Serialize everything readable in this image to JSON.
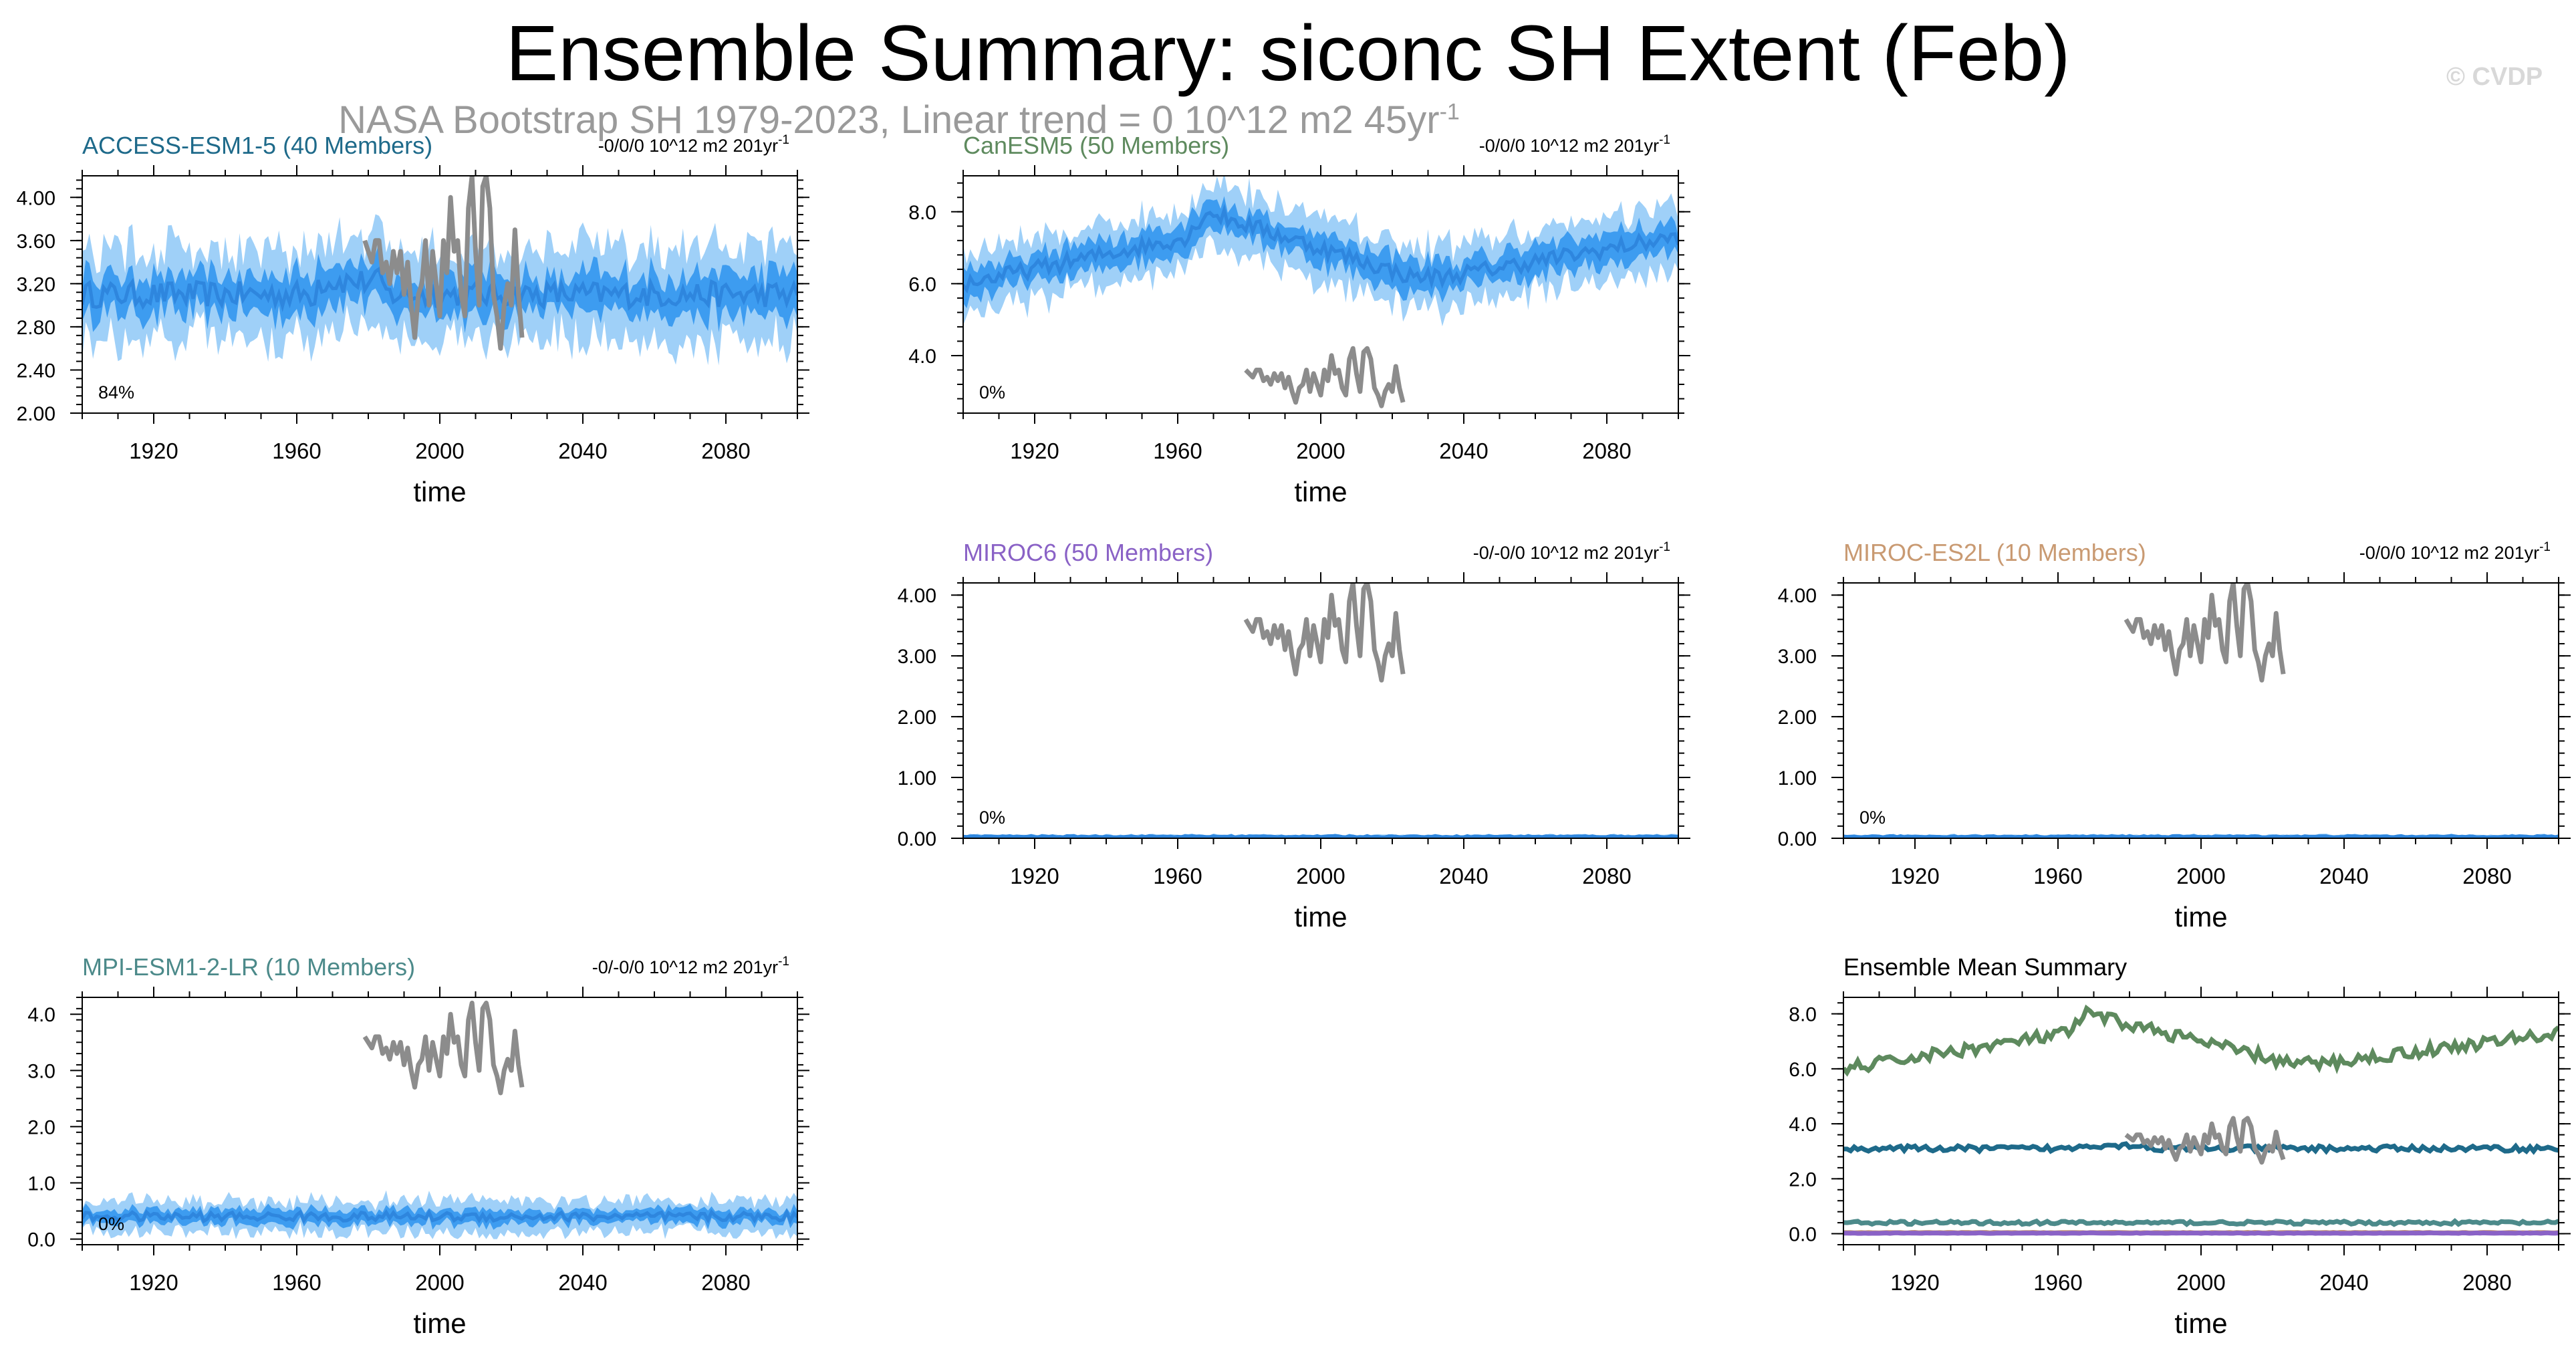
{
  "title": "Ensemble Summary: siconc SH Extent (Feb)",
  "subtitle": {
    "text": "NASA Bootstrap SH 1979-2023, Linear trend = 0 10^12 m2 45yr",
    "superscript": "-1"
  },
  "copyright": "© CVDP",
  "colors": {
    "ensemble_mean": "#2e86de",
    "inner_spread": "#3d9cf0",
    "outer_spread": "#9fd0f8",
    "observations": "#8c8c8c"
  },
  "chart_data": [
    {
      "type": "line",
      "title": "ACCESS-ESM1-5 (40 Members)",
      "title_color": "#1e6a8a",
      "trend_label": "-0/0/0 10^12 m2 201yr",
      "trend_sup": "-1",
      "percent_label": "84%",
      "xlabel": "time",
      "xlim": [
        1900,
        2100
      ],
      "xticks": [
        1920,
        1960,
        2000,
        2040,
        2080
      ],
      "ylim": [
        2.0,
        4.2
      ],
      "yticks": [
        "2.00",
        "2.40",
        "2.80",
        "3.20",
        "3.60",
        "4.00"
      ],
      "grid": false,
      "ensemble": {
        "base": 3.1,
        "amp": 0.12,
        "inner": 0.18,
        "outer": 0.42,
        "min": 2.0
      }
    },
    {
      "type": "line",
      "title": "CanESM5 (50 Members)",
      "title_color": "#5e8a5e",
      "trend_label": "-0/0/0 10^12 m2 201yr",
      "trend_sup": "-1",
      "percent_label": "0%",
      "xlabel": "time",
      "xlim": [
        1900,
        2100
      ],
      "xticks": [
        1920,
        1960,
        2000,
        2040,
        2080
      ],
      "ylim": [
        2.4,
        9.0
      ],
      "yticks": [
        "4.0",
        "6.0",
        "8.0"
      ],
      "grid": false,
      "ensemble": {
        "profile": "canesm",
        "inner": 0.4,
        "outer": 0.85,
        "min": 2.4
      }
    },
    {
      "type": "line",
      "title": "MIROC6 (50 Members)",
      "title_color": "#8a62c6",
      "trend_label": "-0/-0/0 10^12 m2 201yr",
      "trend_sup": "-1",
      "percent_label": "0%",
      "xlabel": "time",
      "xlim": [
        1900,
        2100
      ],
      "xticks": [
        1920,
        1960,
        2000,
        2040,
        2080
      ],
      "ylim": [
        0.0,
        4.2
      ],
      "yticks": [
        "0.00",
        "1.00",
        "2.00",
        "3.00",
        "4.00"
      ],
      "grid": false,
      "ensemble": {
        "base": 0.03,
        "amp": 0.01,
        "inner": 0.015,
        "outer": 0.03,
        "min": 0.0
      }
    },
    {
      "type": "line",
      "title": "MIROC-ES2L (10 Members)",
      "title_color": "#c99a72",
      "trend_label": "-0/0/0 10^12 m2 201yr",
      "trend_sup": "-1",
      "percent_label": "0%",
      "xlabel": "time",
      "xlim": [
        1900,
        2100
      ],
      "xticks": [
        1920,
        1960,
        2000,
        2040,
        2080
      ],
      "ylim": [
        0.0,
        4.2
      ],
      "yticks": [
        "0.00",
        "1.00",
        "2.00",
        "3.00",
        "4.00"
      ],
      "grid": false,
      "ensemble": {
        "base": 0.03,
        "amp": 0.01,
        "inner": 0.015,
        "outer": 0.03,
        "min": 0.0
      }
    },
    {
      "type": "line",
      "title": "MPI-ESM1-2-LR (10 Members)",
      "title_color": "#4c8a8a",
      "trend_label": "-0/-0/0 10^12 m2 201yr",
      "trend_sup": "-1",
      "percent_label": "0%",
      "xlabel": "time",
      "xlim": [
        1900,
        2100
      ],
      "xticks": [
        1920,
        1960,
        2000,
        2040,
        2080
      ],
      "ylim": [
        -0.1,
        4.3
      ],
      "yticks": [
        "0.0",
        "1.0",
        "2.0",
        "3.0",
        "4.0"
      ],
      "grid": false,
      "ensemble": {
        "base": 0.4,
        "amp": 0.08,
        "inner": 0.12,
        "outer": 0.28,
        "min": 0.0
      }
    },
    {
      "type": "line",
      "title": "Ensemble Mean Summary",
      "title_color": "#000000",
      "trend_label": "",
      "trend_sup": "",
      "percent_label": "",
      "xlabel": "time",
      "xlim": [
        1900,
        2100
      ],
      "xticks": [
        1920,
        1960,
        2000,
        2040,
        2080
      ],
      "ylim": [
        -0.4,
        8.6
      ],
      "yticks": [
        "0.0",
        "2.0",
        "4.0",
        "6.0",
        "8.0"
      ],
      "grid": false,
      "summary_lines": [
        {
          "color": "#5e8a5e",
          "profile": "canesm"
        },
        {
          "color": "#1e6a8a",
          "base": 3.1,
          "amp": 0.1
        },
        {
          "color": "#4c8a8a",
          "base": 0.4,
          "amp": 0.06
        },
        {
          "color": "#c99a72",
          "base": 0.04,
          "amp": 0.01
        },
        {
          "color": "#8a62c6",
          "base": 0.02,
          "amp": 0.01
        }
      ]
    }
  ],
  "observations": {
    "name": "NASA Bootstrap SH",
    "years": [
      1979,
      1980,
      1981,
      1982,
      1983,
      1984,
      1985,
      1986,
      1987,
      1988,
      1989,
      1990,
      1991,
      1992,
      1993,
      1994,
      1995,
      1996,
      1997,
      1998,
      1999,
      2000,
      2001,
      2002,
      2003,
      2004,
      2005,
      2006,
      2007,
      2008,
      2009,
      2010,
      2011,
      2012,
      2013,
      2014,
      2015,
      2016,
      2017,
      2018,
      2019,
      2020,
      2021,
      2022,
      2023
    ],
    "values": [
      3.6,
      3.5,
      3.4,
      3.6,
      3.6,
      3.3,
      3.4,
      3.2,
      3.5,
      3.3,
      3.5,
      3.1,
      3.4,
      3.0,
      2.7,
      3.1,
      3.2,
      3.6,
      3.0,
      3.5,
      3.2,
      2.9,
      3.6,
      3.3,
      4.0,
      3.5,
      3.6,
      3.1,
      2.9,
      3.9,
      4.2,
      3.5,
      3.0,
      4.1,
      4.2,
      3.9,
      3.1,
      2.9,
      2.6,
      3.0,
      3.2,
      3.0,
      3.7,
      3.1,
      2.7
    ]
  }
}
